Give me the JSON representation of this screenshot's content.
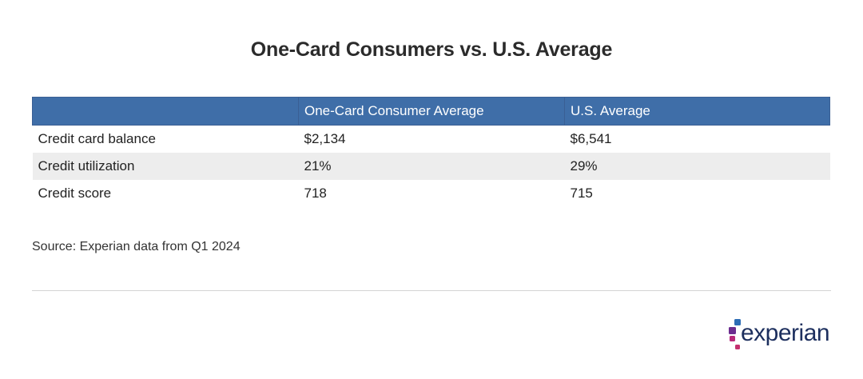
{
  "chart_data": {
    "type": "table",
    "title": "One-Card Consumers vs. U.S. Average",
    "columns": [
      "",
      "One-Card Consumer Average",
      "U.S. Average"
    ],
    "rows": [
      [
        "Credit card balance",
        "$2,134",
        "$6,541"
      ],
      [
        "Credit utilization",
        "21%",
        "29%"
      ],
      [
        "Credit score",
        "718",
        "715"
      ]
    ],
    "source": "Source: Experian data from Q1 2024"
  },
  "colors": {
    "header_bg": "#3f6ea8",
    "header_text": "#ffffff",
    "alt_row_bg": "#ededed",
    "logo_text": "#1d2f5e"
  },
  "brand": {
    "logo_text": "experian",
    "logo_icon": "experian-dots-icon"
  }
}
